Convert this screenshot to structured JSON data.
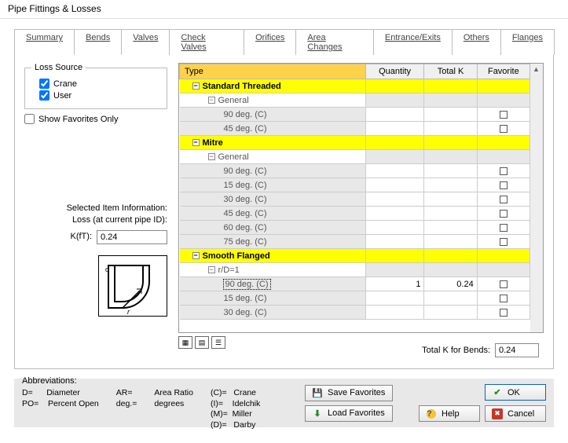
{
  "window": {
    "title": "Pipe Fittings & Losses"
  },
  "tabs": [
    "Summary",
    "Bends",
    "Valves",
    "Check Valves",
    "Orifices",
    "Area Changes",
    "Entrance/Exits",
    "Others",
    "Flanges"
  ],
  "active_tab_index": 1,
  "loss_source": {
    "legend": "Loss Source",
    "crane": {
      "label": "Crane",
      "checked": true
    },
    "user": {
      "label": "User",
      "checked": true
    }
  },
  "show_favorites_only": {
    "label": "Show Favorites Only",
    "checked": false
  },
  "selected_info": {
    "line1": "Selected Item Information:",
    "line2": "Loss (at current pipe ID):",
    "kft_label": "K(fT):",
    "kft_value": "0.24"
  },
  "grid": {
    "headers": {
      "type": "Type",
      "quantity": "Quantity",
      "totalk": "Total K",
      "favorite": "Favorite"
    },
    "rows": [
      {
        "kind": "cat",
        "label": "Standard Threaded"
      },
      {
        "kind": "sub",
        "label": "General"
      },
      {
        "kind": "leaf",
        "label": "90 deg. (C)"
      },
      {
        "kind": "leaf",
        "label": "45 deg. (C)"
      },
      {
        "kind": "cat",
        "label": "Mitre"
      },
      {
        "kind": "sub",
        "label": "General"
      },
      {
        "kind": "leaf",
        "label": "90 deg. (C)"
      },
      {
        "kind": "leaf",
        "label": "15 deg. (C)"
      },
      {
        "kind": "leaf",
        "label": "30 deg. (C)"
      },
      {
        "kind": "leaf",
        "label": "45 deg. (C)"
      },
      {
        "kind": "leaf",
        "label": "60 deg. (C)"
      },
      {
        "kind": "leaf",
        "label": "75 deg. (C)"
      },
      {
        "kind": "cat",
        "label": "Smooth Flanged"
      },
      {
        "kind": "sub",
        "label": "r/D=1"
      },
      {
        "kind": "leaf",
        "label": "90 deg. (C)",
        "qty": "1",
        "k": "0.24",
        "selected": true
      },
      {
        "kind": "leaf",
        "label": "15 deg. (C)"
      },
      {
        "kind": "leaf",
        "label": "30 deg. (C)"
      }
    ],
    "col_widths": {
      "type": 190,
      "quantity": 60,
      "totalk": 54,
      "favorite": 54,
      "filler": 70
    }
  },
  "total_k": {
    "label": "Total K for Bends:",
    "value": "0.24"
  },
  "abbr": {
    "title": "Abbreviations:",
    "col1": "D=      Diameter\nPO=    Percent Open",
    "col2": "AR=\ndeg.=",
    "col3": "Area Ratio\ndegrees",
    "col4": "(C)=   Crane\n(I)=    Idelchik\n(M)=  Miller\n(D)=   Darby"
  },
  "buttons": {
    "save_fav": "Save Favorites",
    "load_fav": "Load Favorites",
    "help": "Help",
    "ok": "OK",
    "cancel": "Cancel"
  },
  "colors": {
    "category_bg": "#ffff00",
    "header_type_bg": "#ffd24a",
    "alt_bg": "#e8e8e8",
    "panel_bg": "#e8e8e8",
    "grid_fill": "#a8a8a8"
  }
}
